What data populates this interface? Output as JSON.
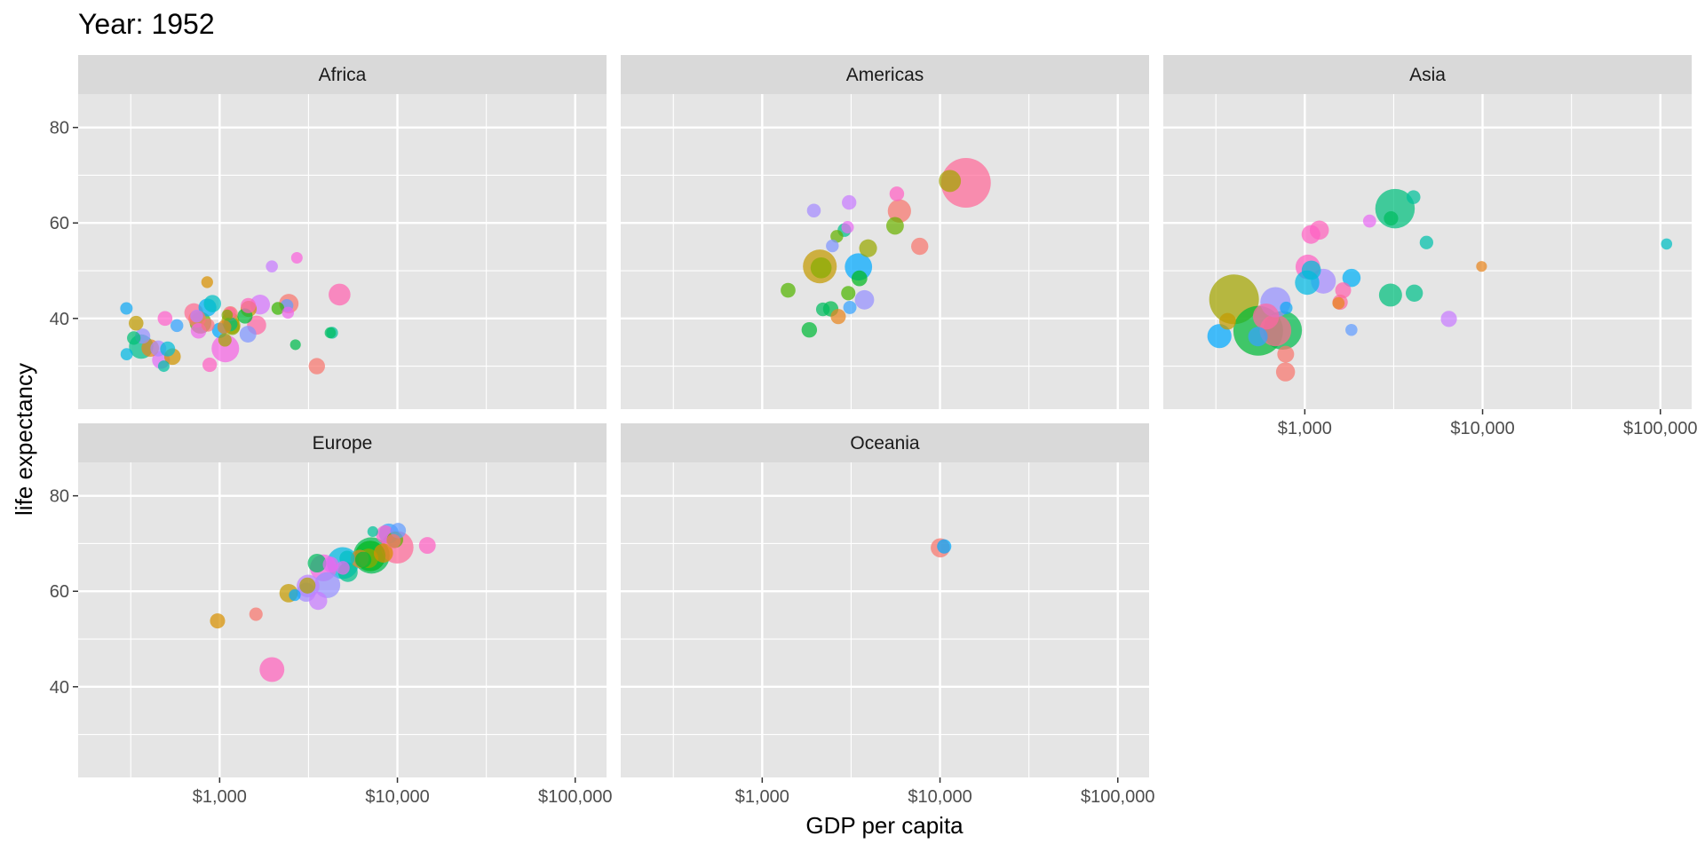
{
  "chart_data": {
    "type": "scatter",
    "title": "Year: 1952",
    "xlabel": "GDP per capita",
    "ylabel": "life expectancy",
    "x_scale": "log10",
    "xlim": [
      160,
      150000
    ],
    "ylim": [
      21,
      87
    ],
    "x_ticks": [
      {
        "value": 1000,
        "label": "$1,000"
      },
      {
        "value": 10000,
        "label": "$10,000"
      },
      {
        "value": 100000,
        "label": "$100,000"
      }
    ],
    "y_ticks": [
      {
        "value": 40,
        "label": "40"
      },
      {
        "value": 60,
        "label": "60"
      },
      {
        "value": 80,
        "label": "80"
      }
    ],
    "grid": true,
    "legend": "none",
    "facets": [
      {
        "name": "Africa",
        "points": [
          {
            "x": 2449,
            "y": 43.1,
            "s": 9.3,
            "c": "#F8766D"
          },
          {
            "x": 3521,
            "y": 30.0,
            "s": 4.2,
            "c": "#F8766D"
          },
          {
            "x": 1063,
            "y": 38.2,
            "s": 1.7,
            "c": "#E7851E"
          },
          {
            "x": 851,
            "y": 47.6,
            "s": 0.4,
            "c": "#D89000"
          },
          {
            "x": 543,
            "y": 32.0,
            "s": 4.5,
            "c": "#D09400"
          },
          {
            "x": 339,
            "y": 39.0,
            "s": 2.4,
            "c": "#C09B00"
          },
          {
            "x": 1173,
            "y": 38.5,
            "s": 5.0,
            "c": "#B79F00"
          },
          {
            "x": 1071,
            "y": 35.5,
            "s": 1.3,
            "c": "#A3A500"
          },
          {
            "x": 1179,
            "y": 38.1,
            "s": 2.7,
            "c": "#8EAB00"
          },
          {
            "x": 1103,
            "y": 40.7,
            "s": 0.2,
            "c": "#7CAE00"
          },
          {
            "x": 781,
            "y": 39.1,
            "s": 14.1,
            "c": "#64B200"
          },
          {
            "x": 2126,
            "y": 42.1,
            "s": 0.9,
            "c": "#39B600"
          },
          {
            "x": 1389,
            "y": 40.5,
            "s": 2.9,
            "c": "#00BA38"
          },
          {
            "x": 2669,
            "y": 34.5,
            "s": 0.1,
            "c": "#00BB4E"
          },
          {
            "x": 4190,
            "y": 37.0,
            "s": 0.2,
            "c": "#00BD5F"
          },
          {
            "x": 329,
            "y": 35.9,
            "s": 1.4,
            "c": "#00BF74"
          },
          {
            "x": 362,
            "y": 34.1,
            "s": 20.9,
            "c": "#00C08B"
          },
          {
            "x": 4293,
            "y": 37.0,
            "s": 0.4,
            "c": "#00C19A"
          },
          {
            "x": 485,
            "y": 30.0,
            "s": 0.3,
            "c": "#00C1A3"
          },
          {
            "x": 911,
            "y": 43.1,
            "s": 5.6,
            "c": "#00BFC4"
          },
          {
            "x": 510,
            "y": 33.6,
            "s": 2.7,
            "c": "#00BCD8"
          },
          {
            "x": 300,
            "y": 32.5,
            "s": 0.6,
            "c": "#00B9E3"
          },
          {
            "x": 854,
            "y": 42.3,
            "s": 6.5,
            "c": "#00B0F6"
          },
          {
            "x": 299,
            "y": 42.1,
            "s": 0.7,
            "c": "#0FA8F4"
          },
          {
            "x": 575,
            "y": 38.5,
            "s": 0.9,
            "c": "#35A2FF"
          },
          {
            "x": 2388,
            "y": 42.7,
            "s": 1.0,
            "c": "#619CFF"
          },
          {
            "x": 1443,
            "y": 36.7,
            "s": 4.8,
            "c": "#7F96FF"
          },
          {
            "x": 369,
            "y": 36.3,
            "s": 2.9,
            "c": "#9590FF"
          },
          {
            "x": 452,
            "y": 33.7,
            "s": 3.8,
            "c": "#AA88FF"
          },
          {
            "x": 743,
            "y": 40.5,
            "s": 1.0,
            "c": "#BD81FF"
          },
          {
            "x": 1967,
            "y": 50.9,
            "s": 0.5,
            "c": "#C77CFF"
          },
          {
            "x": 1688,
            "y": 42.9,
            "s": 9.9,
            "c": "#D575FE"
          },
          {
            "x": 468,
            "y": 31.3,
            "s": 6.4,
            "c": "#E26EF7"
          },
          {
            "x": 2423,
            "y": 41.2,
            "s": 0.5,
            "c": "#ED68ED"
          },
          {
            "x": 761,
            "y": 37.4,
            "s": 3.3,
            "c": "#F066EA"
          },
          {
            "x": 1077,
            "y": 33.7,
            "s": 31.0,
            "c": "#F564E3"
          },
          {
            "x": 2719,
            "y": 52.7,
            "s": 0.3,
            "c": "#F962DD"
          },
          {
            "x": 493,
            "y": 40.0,
            "s": 2.5,
            "c": "#FF61CC"
          },
          {
            "x": 879,
            "y": 30.3,
            "s": 2.1,
            "c": "#FF61C3"
          },
          {
            "x": 1450,
            "y": 42.7,
            "s": 2.9,
            "c": "#FF62BC"
          },
          {
            "x": 4725,
            "y": 45.0,
            "s": 14.3,
            "c": "#FF64B0"
          },
          {
            "x": 1615,
            "y": 38.6,
            "s": 8.5,
            "c": "#FF67A4"
          },
          {
            "x": 1148,
            "y": 41.2,
            "s": 0.3,
            "c": "#FF6A98"
          },
          {
            "x": 716,
            "y": 41.2,
            "s": 8.3,
            "c": "#FF6C91"
          },
          {
            "x": 860,
            "y": 38.6,
            "s": 1.1,
            "c": "#FC717F"
          },
          {
            "x": 747,
            "y": 39.9,
            "s": 5.8,
            "c": "#F8766D"
          },
          {
            "x": 1148,
            "y": 41.0,
            "s": 2.7,
            "c": "#F8766D"
          },
          {
            "x": 407,
            "y": 33.8,
            "s": 6.0,
            "c": "#E7851E"
          },
          {
            "x": 1456,
            "y": 42.0,
            "s": 4.0,
            "c": "#CF9400"
          },
          {
            "x": 1148,
            "y": 39.5,
            "s": 6.0,
            "c": "#A3A500"
          },
          {
            "x": 1148,
            "y": 38.8,
            "s": 2.0,
            "c": "#00BF7D"
          },
          {
            "x": 1000,
            "y": 37.5,
            "s": 3.0,
            "c": "#00A9FF"
          }
        ]
      },
      {
        "name": "Americas",
        "points": [
          {
            "x": 5911,
            "y": 62.5,
            "s": 17.9,
            "c": "#F8766D"
          },
          {
            "x": 2677,
            "y": 40.4,
            "s": 2.9,
            "c": "#E7851E"
          },
          {
            "x": 2109,
            "y": 50.9,
            "s": 56.6,
            "c": "#C49A00"
          },
          {
            "x": 11367,
            "y": 68.8,
            "s": 14.8,
            "c": "#A3A500"
          },
          {
            "x": 3940,
            "y": 54.7,
            "s": 6.4,
            "c": "#99A800"
          },
          {
            "x": 2144,
            "y": 50.6,
            "s": 12.4,
            "c": "#88AC00"
          },
          {
            "x": 2628,
            "y": 57.2,
            "s": 0.9,
            "c": "#64B200"
          },
          {
            "x": 5587,
            "y": 59.4,
            "s": 6.0,
            "c": "#6BB100"
          },
          {
            "x": 1398,
            "y": 45.9,
            "s": 2.5,
            "c": "#53B400"
          },
          {
            "x": 3522,
            "y": 48.4,
            "s": 3.5,
            "c": "#00B81F"
          },
          {
            "x": 3048,
            "y": 45.3,
            "s": 2.0,
            "c": "#4BB500"
          },
          {
            "x": 2428,
            "y": 42.0,
            "s": 3.1,
            "c": "#00BB4E"
          },
          {
            "x": 1840,
            "y": 37.6,
            "s": 3.2,
            "c": "#00BA38"
          },
          {
            "x": 2194,
            "y": 41.9,
            "s": 1.5,
            "c": "#00BD5F"
          },
          {
            "x": 2898,
            "y": 58.5,
            "s": 1.4,
            "c": "#00C08B"
          },
          {
            "x": 3478,
            "y": 50.8,
            "s": 30.1,
            "c": "#00A9FF"
          },
          {
            "x": 3112,
            "y": 42.3,
            "s": 1.2,
            "c": "#35A2FF"
          },
          {
            "x": 2480,
            "y": 55.2,
            "s": 0.9,
            "c": "#7F96FF"
          },
          {
            "x": 1952,
            "y": 62.6,
            "s": 1.6,
            "c": "#A58AFF"
          },
          {
            "x": 3759,
            "y": 43.9,
            "s": 9.0,
            "c": "#9590FF"
          },
          {
            "x": 3082,
            "y": 64.3,
            "s": 2.2,
            "c": "#C77CFF"
          },
          {
            "x": 3023,
            "y": 59.1,
            "s": 0.7,
            "c": "#E76BF3"
          },
          {
            "x": 5716,
            "y": 66.1,
            "s": 2.3,
            "c": "#FF61C3"
          },
          {
            "x": 13990,
            "y": 68.4,
            "s": 157.6,
            "c": "#FF6A98"
          },
          {
            "x": 7690,
            "y": 55.1,
            "s": 5.4,
            "c": "#F8766D"
          }
        ]
      },
      {
        "name": "Asia",
        "points": [
          {
            "x": 779,
            "y": 28.8,
            "s": 8.4,
            "c": "#F8766D"
          },
          {
            "x": 9867,
            "y": 50.9,
            "s": 0.1,
            "c": "#E7851E"
          },
          {
            "x": 684,
            "y": 37.5,
            "s": 46.9,
            "c": "#FF6C91"
          },
          {
            "x": 368,
            "y": 39.4,
            "s": 4.7,
            "c": "#C49A00"
          },
          {
            "x": 400,
            "y": 44.0,
            "s": 556.3,
            "c": "#A3A500"
          },
          {
            "x": 3054,
            "y": 60.96,
            "s": 2.1,
            "c": "#00BD5F"
          },
          {
            "x": 547,
            "y": 37.4,
            "s": 372.0,
            "c": "#00BA38"
          },
          {
            "x": 750,
            "y": 37.5,
            "s": 82.1,
            "c": "#00BB4E"
          },
          {
            "x": 3035,
            "y": 44.9,
            "s": 17.3,
            "c": "#00BF7D"
          },
          {
            "x": 4130,
            "y": 45.3,
            "s": 5.4,
            "c": "#00C08B"
          },
          {
            "x": 4087,
            "y": 65.4,
            "s": 1.6,
            "c": "#00C19A"
          },
          {
            "x": 3217,
            "y": 63.0,
            "s": 86.5,
            "c": "#00BF7D"
          },
          {
            "x": 1547,
            "y": 43.2,
            "s": 0.6,
            "c": "#E7851E"
          },
          {
            "x": 1088,
            "y": 50.1,
            "s": 8.9,
            "c": "#00BCD8"
          },
          {
            "x": 1031,
            "y": 47.5,
            "s": 20.9,
            "c": "#00B9E3"
          },
          {
            "x": 108382,
            "y": 55.6,
            "s": 0.2,
            "c": "#00BFC4"
          },
          {
            "x": 4835,
            "y": 55.9,
            "s": 1.4,
            "c": "#00C1AA"
          },
          {
            "x": 1831,
            "y": 48.5,
            "s": 7.0,
            "c": "#00B0F6"
          },
          {
            "x": 786,
            "y": 42.2,
            "s": 0.8,
            "c": "#0FA8F4"
          },
          {
            "x": 331,
            "y": 36.3,
            "s": 20.1,
            "c": "#00A9FF"
          },
          {
            "x": 545,
            "y": 36.2,
            "s": 9.2,
            "c": "#35A2FF"
          },
          {
            "x": 1829,
            "y": 37.6,
            "s": 0.5,
            "c": "#619CFF"
          },
          {
            "x": 684,
            "y": 43.4,
            "s": 41.3,
            "c": "#9590FF"
          },
          {
            "x": 1272,
            "y": 47.8,
            "s": 22.4,
            "c": "#A58AFF"
          },
          {
            "x": 6460,
            "y": 39.9,
            "s": 4.0,
            "c": "#C77CFF"
          },
          {
            "x": 2315,
            "y": 60.4,
            "s": 1.1,
            "c": "#E76BF3"
          },
          {
            "x": 1083,
            "y": 57.6,
            "s": 7.9,
            "c": "#FF61C3"
          },
          {
            "x": 1207,
            "y": 58.5,
            "s": 8.6,
            "c": "#FF62BC"
          },
          {
            "x": 1643,
            "y": 45.9,
            "s": 3.7,
            "c": "#FF64B0"
          },
          {
            "x": 605,
            "y": 40.4,
            "s": 26.2,
            "c": "#FF67A4"
          },
          {
            "x": 781,
            "y": 32.5,
            "s": 4.9,
            "c": "#F8766D"
          },
          {
            "x": 1040,
            "y": 50.8,
            "s": 21.3,
            "c": "#FF61C3"
          },
          {
            "x": 1580,
            "y": 43.4,
            "s": 3.0,
            "c": "#FF6A98"
          }
        ]
      },
      {
        "name": "Europe",
        "points": [
          {
            "x": 1601,
            "y": 55.2,
            "s": 1.3,
            "c": "#F8766D"
          },
          {
            "x": 6137,
            "y": 66.8,
            "s": 6.9,
            "c": "#E7851E"
          },
          {
            "x": 8343,
            "y": 68.0,
            "s": 8.7,
            "c": "#DB8E00"
          },
          {
            "x": 973,
            "y": 53.8,
            "s": 2.8,
            "c": "#D89000"
          },
          {
            "x": 2444,
            "y": 59.6,
            "s": 7.3,
            "c": "#C49A00"
          },
          {
            "x": 3120,
            "y": 61.2,
            "s": 3.9,
            "c": "#AEA200"
          },
          {
            "x": 6876,
            "y": 66.9,
            "s": 9.1,
            "c": "#8EAB00"
          },
          {
            "x": 9692,
            "y": 70.8,
            "s": 4.3,
            "c": "#64B200"
          },
          {
            "x": 6425,
            "y": 66.6,
            "s": 4.1,
            "c": "#00BA38"
          },
          {
            "x": 7030,
            "y": 67.4,
            "s": 42.5,
            "c": "#00B81F"
          },
          {
            "x": 7144,
            "y": 67.5,
            "s": 69.1,
            "c": "#00BB4E"
          },
          {
            "x": 3531,
            "y": 65.9,
            "s": 7.7,
            "c": "#00BD5F"
          },
          {
            "x": 5264,
            "y": 64.0,
            "s": 9.5,
            "c": "#00C08B"
          },
          {
            "x": 7268,
            "y": 72.5,
            "s": 0.1,
            "c": "#00C19A"
          },
          {
            "x": 5211,
            "y": 66.9,
            "s": 3.0,
            "c": "#00BFC4"
          },
          {
            "x": 4931,
            "y": 65.9,
            "s": 47.7,
            "c": "#00B9E3"
          },
          {
            "x": 2647,
            "y": 59.2,
            "s": 0.4,
            "c": "#00A9FF"
          },
          {
            "x": 8942,
            "y": 72.1,
            "s": 10.4,
            "c": "#35A2FF"
          },
          {
            "x": 10095,
            "y": 72.7,
            "s": 3.3,
            "c": "#619CFF"
          },
          {
            "x": 4029,
            "y": 61.3,
            "s": 25.7,
            "c": "#9590FF"
          },
          {
            "x": 3068,
            "y": 59.8,
            "s": 8.5,
            "c": "#A58AFF"
          },
          {
            "x": 3144,
            "y": 61.1,
            "s": 16.6,
            "c": "#BD81FF"
          },
          {
            "x": 3582,
            "y": 58.0,
            "s": 6.9,
            "c": "#C77CFF"
          },
          {
            "x": 4216,
            "y": 65.6,
            "s": 3.6,
            "c": "#E76BF3"
          },
          {
            "x": 4931,
            "y": 64.9,
            "s": 1.5,
            "c": "#ED68ED"
          },
          {
            "x": 3834,
            "y": 64.9,
            "s": 28.5,
            "c": "#F564E3"
          },
          {
            "x": 8528,
            "y": 71.9,
            "s": 7.1,
            "c": "#FF61CC"
          },
          {
            "x": 14734,
            "y": 69.6,
            "s": 4.8,
            "c": "#FF61C3"
          },
          {
            "x": 1969,
            "y": 43.6,
            "s": 22.2,
            "c": "#FF62BC"
          },
          {
            "x": 9980,
            "y": 69.2,
            "s": 50.4,
            "c": "#FF6A98"
          },
          {
            "x": 9500,
            "y": 70.5,
            "s": 2.0,
            "c": "#F8766D"
          }
        ]
      },
      {
        "name": "Oceania",
        "points": [
          {
            "x": 10040,
            "y": 69.1,
            "s": 8.7,
            "c": "#F8766D"
          },
          {
            "x": 10557,
            "y": 69.4,
            "s": 1.99,
            "c": "#00A9FF"
          }
        ]
      }
    ]
  }
}
